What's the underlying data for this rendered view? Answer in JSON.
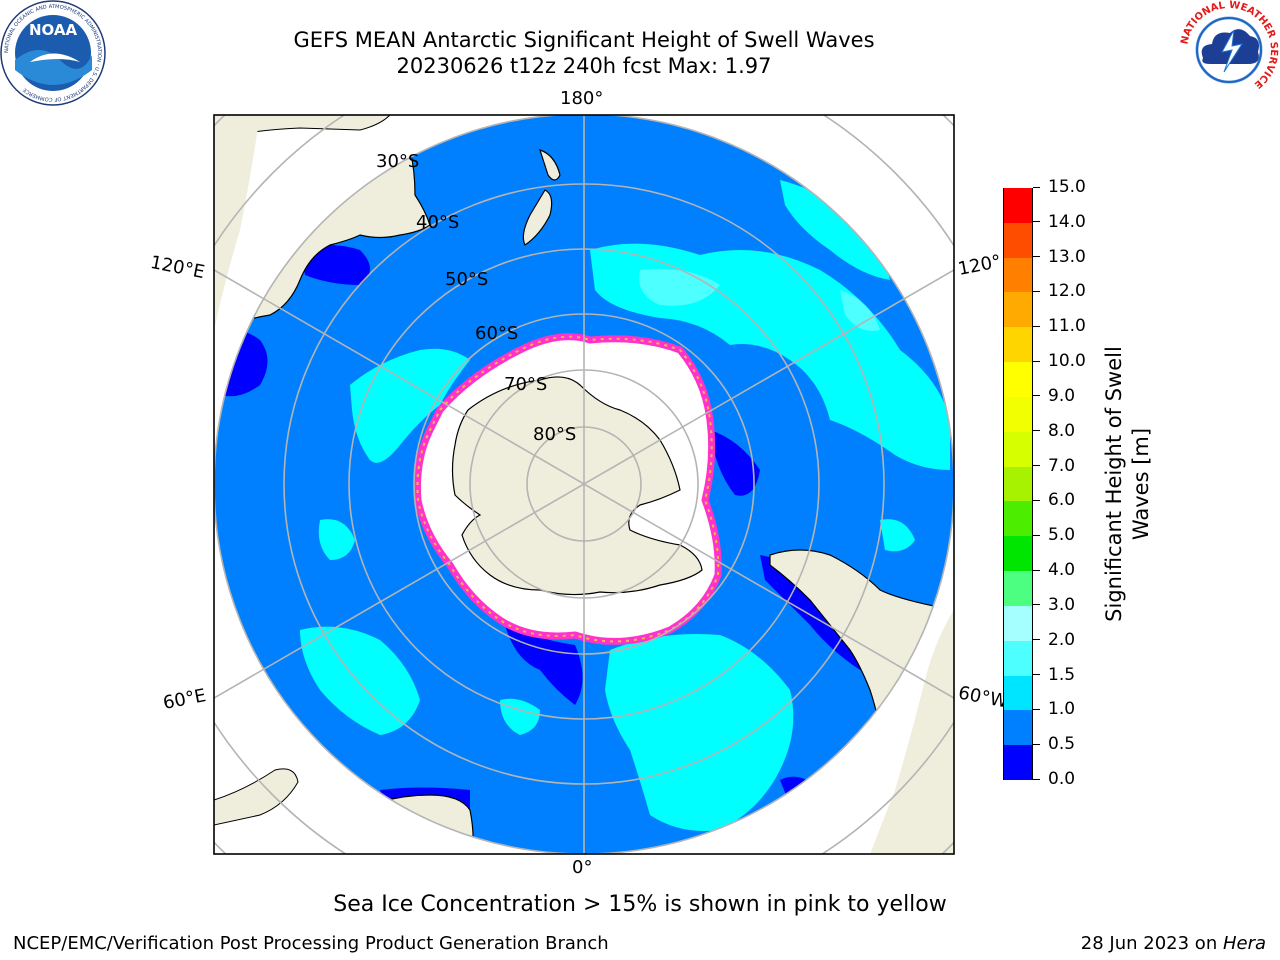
{
  "header": {
    "title_line1": "GEFS MEAN Antarctic Significant Height of Swell Waves",
    "title_line2": "20230626 t12z 240h fcst   Max: 1.97"
  },
  "logos": {
    "noaa_text": "NOAA",
    "noaa_ring_text": "NATIONAL OCEANIC AND ATMOSPHERIC ADMINISTRATION · U.S. DEPARTMENT OF COMMERCE",
    "nws_ring_text": "NATIONAL WEATHER SERVICE"
  },
  "map": {
    "longitude_labels": {
      "top": "180°",
      "bottom": "0°",
      "left_upper": "120°E",
      "left_lower": "60°E",
      "right_upper": "120°",
      "right_lower": "60°W"
    },
    "latitude_labels": [
      "30°S",
      "40°S",
      "50°S",
      "60°S",
      "70°S",
      "80°S"
    ],
    "colors": {
      "ocean_base": "#0080ff",
      "land": "#efeedc",
      "ice": "#ffffff",
      "ice_edge": "#ff33cc",
      "low": "#0000ff",
      "mid": "#00ffff",
      "grid": "#b4b4b4"
    }
  },
  "colorbar": {
    "label": "Significant Height of Swell Waves [m]",
    "ticks": [
      "0.0",
      "0.5",
      "1.0",
      "1.5",
      "2.0",
      "3.0",
      "4.0",
      "5.0",
      "6.0",
      "7.0",
      "8.0",
      "9.0",
      "10.0",
      "11.0",
      "12.0",
      "13.0",
      "14.0",
      "15.0"
    ],
    "colors": [
      "#0000ff",
      "#0080ff",
      "#00e5ff",
      "#4dffff",
      "#a6ffff",
      "#4dff80",
      "#00e600",
      "#4ded00",
      "#a6f200",
      "#d6ff00",
      "#f2ff00",
      "#ffff00",
      "#ffd500",
      "#ffaa00",
      "#ff8000",
      "#ff4d00",
      "#ff0000"
    ]
  },
  "note": "Sea Ice Concentration > 15% is shown in pink to yellow",
  "footer": {
    "left": "NCEP/EMC/Verification Post Processing Product Generation Branch",
    "right_prefix": "28 Jun 2023 on ",
    "right_host": "Hera"
  }
}
